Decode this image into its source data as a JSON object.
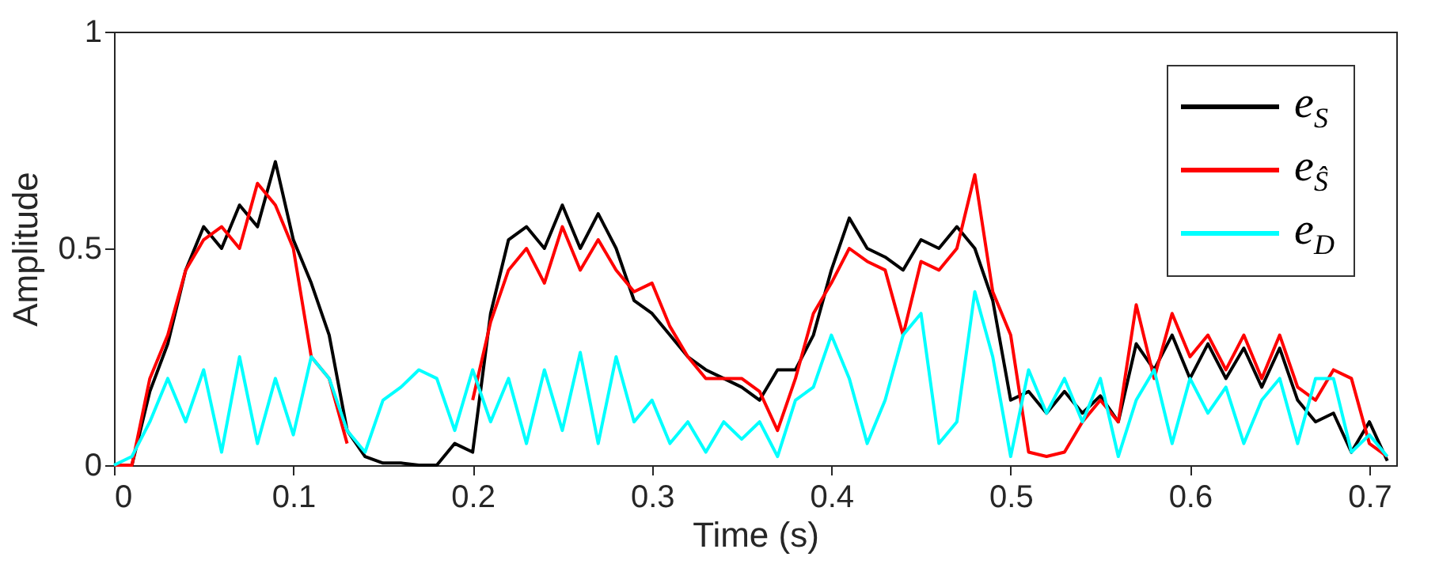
{
  "chart_data": {
    "type": "line",
    "xlabel": "Time (s)",
    "ylabel": "Amplitude",
    "xlim": [
      0,
      0.715
    ],
    "ylim": [
      0,
      1
    ],
    "xticks": [
      0,
      0.1,
      0.2,
      0.3,
      0.4,
      0.5,
      0.6,
      0.7
    ],
    "yticks": [
      0,
      0.5,
      1
    ],
    "legend": "top right",
    "grid": false,
    "x": [
      0,
      0.01,
      0.02,
      0.03,
      0.04,
      0.05,
      0.06,
      0.07,
      0.08,
      0.09,
      0.1,
      0.11,
      0.12,
      0.13,
      0.14,
      0.15,
      0.16,
      0.17,
      0.18,
      0.19,
      0.2,
      0.21,
      0.22,
      0.23,
      0.24,
      0.25,
      0.26,
      0.27,
      0.28,
      0.29,
      0.3,
      0.31,
      0.32,
      0.33,
      0.34,
      0.35,
      0.36,
      0.37,
      0.38,
      0.39,
      0.4,
      0.41,
      0.42,
      0.43,
      0.44,
      0.45,
      0.46,
      0.47,
      0.48,
      0.49,
      0.5,
      0.51,
      0.52,
      0.53,
      0.54,
      0.55,
      0.56,
      0.57,
      0.58,
      0.59,
      0.6,
      0.61,
      0.62,
      0.63,
      0.64,
      0.65,
      0.66,
      0.67,
      0.68,
      0.69,
      0.7,
      0.71
    ],
    "series": [
      {
        "name": "e$_{S}$",
        "color": "#000000",
        "values": [
          0,
          0,
          0.17,
          0.28,
          0.45,
          0.55,
          0.5,
          0.6,
          0.55,
          0.7,
          0.52,
          0.42,
          0.3,
          0.08,
          0.02,
          0.005,
          0.005,
          0,
          0,
          0.05,
          0.03,
          0.35,
          0.52,
          0.55,
          0.5,
          0.6,
          0.5,
          0.58,
          0.5,
          0.38,
          0.35,
          0.3,
          0.25,
          0.22,
          0.2,
          0.18,
          0.15,
          0.22,
          0.22,
          0.3,
          0.45,
          0.57,
          0.5,
          0.48,
          0.45,
          0.52,
          0.5,
          0.55,
          0.5,
          0.38,
          0.15,
          0.17,
          0.12,
          0.17,
          0.12,
          0.16,
          0.1,
          0.28,
          0.22,
          0.3,
          0.2,
          0.28,
          0.2,
          0.27,
          0.18,
          0.27,
          0.15,
          0.1,
          0.12,
          0.03,
          0.1,
          0.01
        ]
      },
      {
        "name": "e$_{Ŝ}$",
        "color": "#ff0000",
        "values": [
          0,
          0,
          0.2,
          0.3,
          0.45,
          0.52,
          0.55,
          0.5,
          0.65,
          0.6,
          0.5,
          0.25,
          0.2,
          0.05,
          null,
          null,
          null,
          null,
          null,
          null,
          0.15,
          0.33,
          0.45,
          0.5,
          0.42,
          0.55,
          0.45,
          0.52,
          0.45,
          0.4,
          0.42,
          0.32,
          0.25,
          0.2,
          0.2,
          0.2,
          0.17,
          0.08,
          0.2,
          0.35,
          0.42,
          0.5,
          0.47,
          0.45,
          0.3,
          0.47,
          0.45,
          0.5,
          0.67,
          0.4,
          0.3,
          0.03,
          0.02,
          0.03,
          0.1,
          0.15,
          0.1,
          0.37,
          0.2,
          0.35,
          0.25,
          0.3,
          0.22,
          0.3,
          0.2,
          0.3,
          0.18,
          0.15,
          0.22,
          0.2,
          0.05,
          0.02
        ]
      },
      {
        "name": "e$_{D}$",
        "color": "#00ffff",
        "values": [
          0,
          0.02,
          0.1,
          0.2,
          0.1,
          0.22,
          0.03,
          0.25,
          0.05,
          0.2,
          0.07,
          0.25,
          0.2,
          0.08,
          0.03,
          0.15,
          0.18,
          0.22,
          0.2,
          0.08,
          0.22,
          0.1,
          0.2,
          0.05,
          0.22,
          0.08,
          0.26,
          0.05,
          0.25,
          0.1,
          0.15,
          0.05,
          0.1,
          0.03,
          0.1,
          0.06,
          0.1,
          0.02,
          0.15,
          0.18,
          0.3,
          0.2,
          0.05,
          0.15,
          0.3,
          0.35,
          0.05,
          0.1,
          0.4,
          0.25,
          0.02,
          0.22,
          0.12,
          0.2,
          0.1,
          0.2,
          0.02,
          0.15,
          0.22,
          0.05,
          0.2,
          0.12,
          0.18,
          0.05,
          0.15,
          0.2,
          0.05,
          0.2,
          0.2,
          0.03,
          0.07,
          0.02
        ]
      }
    ]
  }
}
